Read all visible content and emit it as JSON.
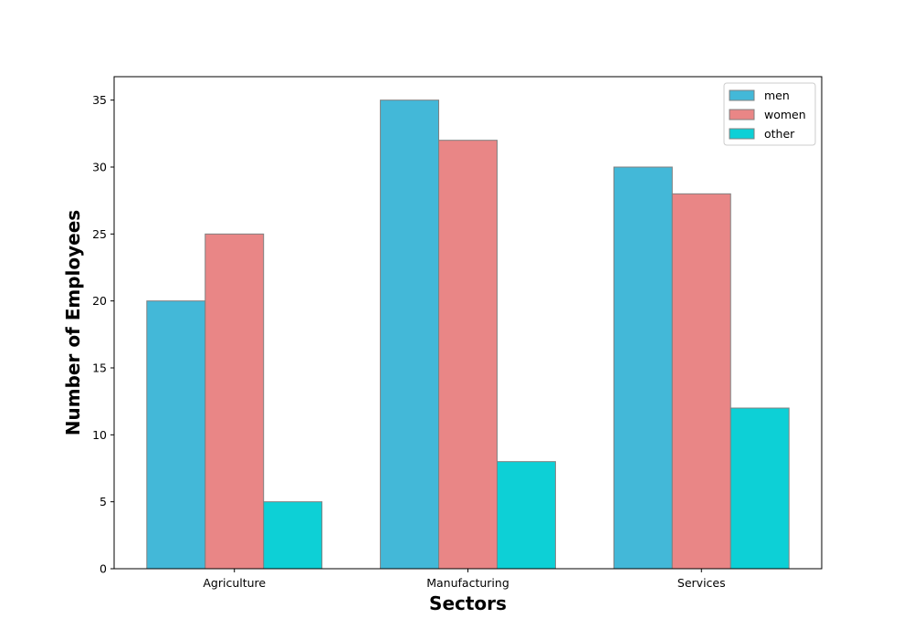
{
  "chart_data": {
    "type": "bar",
    "title": "",
    "xlabel": "Sectors",
    "ylabel": "Number of Employees",
    "categories": [
      "Agriculture",
      "Manufacturing",
      "Services"
    ],
    "series": [
      {
        "name": "men",
        "values": [
          20,
          35,
          30
        ],
        "color": "#43b8d8"
      },
      {
        "name": "women",
        "values": [
          25,
          32,
          28
        ],
        "color": "#e98686"
      },
      {
        "name": "other",
        "values": [
          5,
          8,
          12
        ],
        "color": "#0dd0d6"
      }
    ],
    "ylim": [
      0,
      36.75
    ],
    "yticks": [
      0,
      5,
      10,
      15,
      20,
      25,
      30,
      35
    ],
    "grid": false,
    "legend_position": "top-right",
    "bar_edge_color": "#808080"
  }
}
